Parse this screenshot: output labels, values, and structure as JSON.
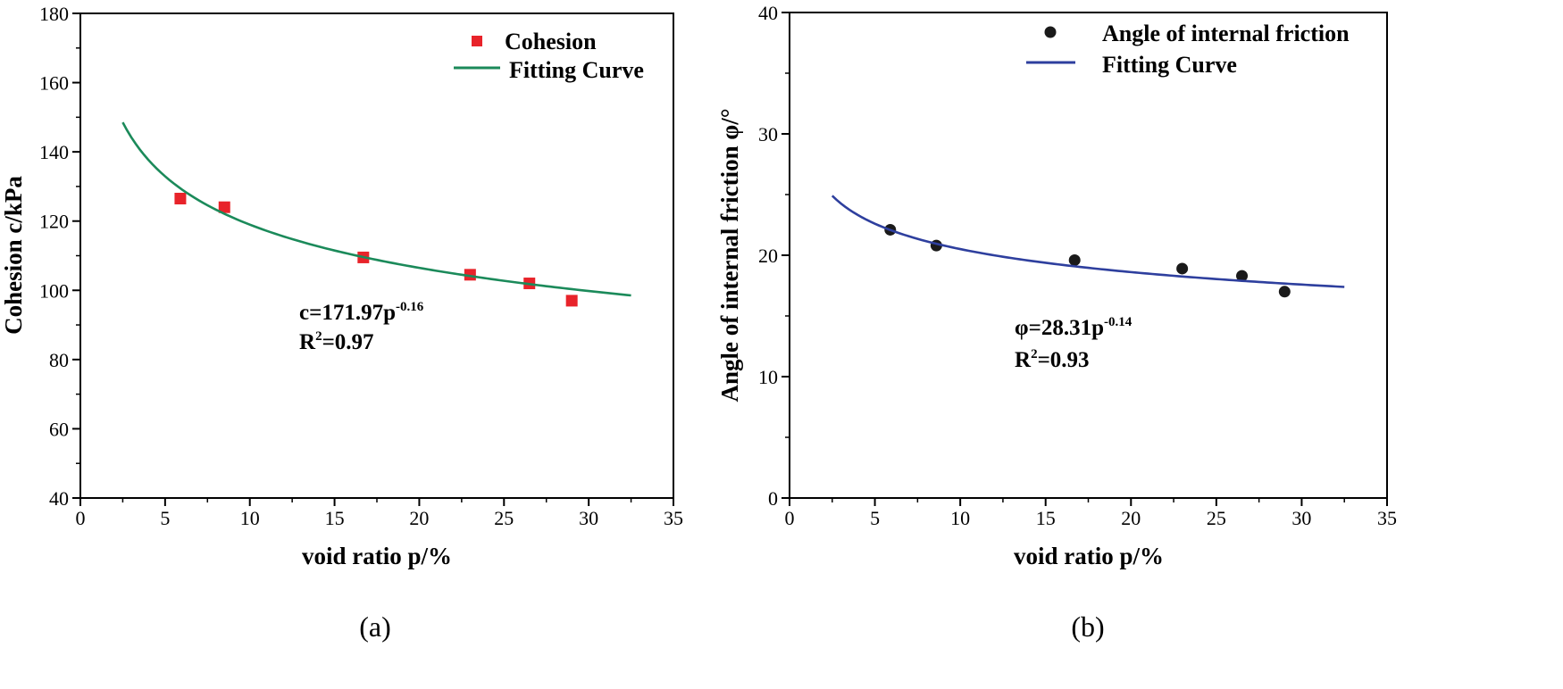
{
  "chart_data": [
    {
      "id": "a",
      "type": "scatter",
      "panel_label": "(a)",
      "xlabel": "void ratio p/%",
      "ylabel": "Cohesion c/kPa",
      "xlim": [
        0,
        35
      ],
      "ylim": [
        40,
        180
      ],
      "x_ticks": [
        0,
        5,
        10,
        15,
        20,
        25,
        30,
        35
      ],
      "x_tick_labels": [
        "0",
        "5",
        "10",
        "15",
        "20",
        "25",
        "30",
        "35"
      ],
      "y_ticks": [
        40,
        60,
        80,
        100,
        120,
        140,
        160,
        180
      ],
      "y_tick_labels": [
        "40",
        "60",
        "80",
        "100",
        "120",
        "140",
        "160",
        "180"
      ],
      "legend_position": "top-right",
      "series": [
        {
          "name": "Cohesion",
          "kind": "points",
          "marker": "square",
          "color": "#e8232a",
          "x": [
            5.9,
            8.5,
            16.7,
            23.0,
            26.5,
            29.0
          ],
          "y": [
            126.5,
            124.0,
            109.5,
            104.5,
            102.0,
            97.0
          ]
        },
        {
          "name": "Fitting Curve",
          "kind": "fit",
          "color": "#1b8a5a",
          "coef": 171.97,
          "exponent": -0.16,
          "x_range": [
            2.5,
            32.5
          ]
        }
      ],
      "annotation": {
        "equation_main": "c=171.97p",
        "equation_exp": "-0.16",
        "r2_prefix": "R",
        "r2_sup": "2",
        "r2_value": "=0.97"
      }
    },
    {
      "id": "b",
      "type": "scatter",
      "panel_label": "(b)",
      "xlabel": "void ratio p/%",
      "ylabel": "Angle of internal friction φ/°",
      "xlim": [
        0,
        35
      ],
      "ylim": [
        0,
        40
      ],
      "x_ticks": [
        0,
        5,
        10,
        15,
        20,
        25,
        30,
        35
      ],
      "x_tick_labels": [
        "0",
        "5",
        "10",
        "15",
        "20",
        "25",
        "30",
        "35"
      ],
      "y_ticks": [
        0,
        10,
        20,
        30,
        40
      ],
      "y_tick_labels": [
        "0",
        "10",
        "20",
        "30",
        "40"
      ],
      "legend_position": "top-right",
      "series": [
        {
          "name": "Angle of internal friction",
          "kind": "points",
          "marker": "circle",
          "color": "#1a1a1a",
          "x": [
            5.9,
            8.6,
            16.7,
            23.0,
            26.5,
            29.0
          ],
          "y": [
            22.1,
            20.8,
            19.6,
            18.9,
            18.3,
            17.0
          ]
        },
        {
          "name": "Fitting Curve",
          "kind": "fit",
          "color": "#2e3f9e",
          "coef": 28.31,
          "exponent": -0.14,
          "x_range": [
            2.5,
            32.5
          ]
        }
      ],
      "annotation": {
        "equation_main": "φ=28.31p",
        "equation_exp": "-0.14",
        "r2_prefix": "R",
        "r2_sup": "2",
        "r2_value": "=0.93"
      }
    }
  ]
}
